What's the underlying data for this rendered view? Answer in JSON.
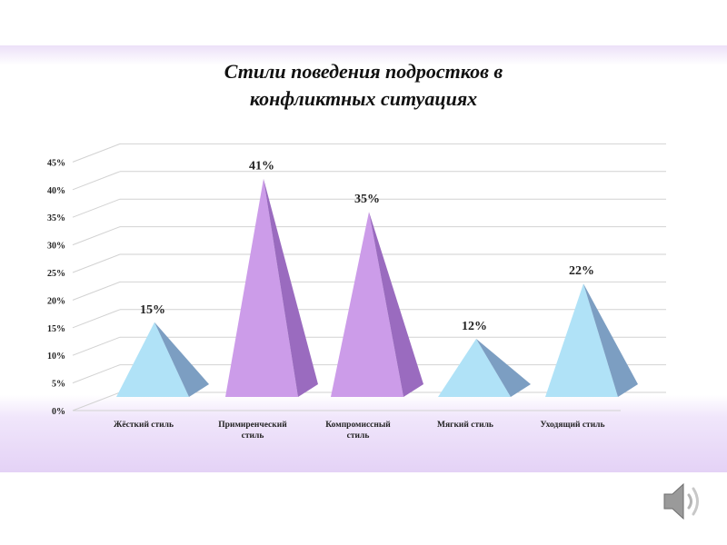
{
  "chart_data": {
    "type": "bar",
    "bar_shape": "pyramid",
    "title_lines": [
      "Стили поведения подростков в",
      "конфликтных ситуациях"
    ],
    "categories": [
      [
        "Жёсткий  стиль"
      ],
      [
        "Примиренческий",
        "стиль"
      ],
      [
        "Компромиссный",
        "стиль"
      ],
      [
        "Мягкий  стиль"
      ],
      [
        "Уходящий стиль"
      ]
    ],
    "values": [
      15,
      41,
      35,
      12,
      22
    ],
    "value_labels": [
      "15%",
      "41%",
      "35%",
      "12%",
      "22%"
    ],
    "colors": {
      "light": {
        "front": "#b0e2f7",
        "side": "#7c9ec2"
      },
      "purple": {
        "front": "#cc9ce9",
        "side": "#9a6bbf"
      }
    },
    "bar_color_keys": [
      "light",
      "purple",
      "purple",
      "light",
      "light"
    ],
    "yticks": [
      "0%",
      "5%",
      "10%",
      "15%",
      "20%",
      "25%",
      "30%",
      "35%",
      "40%",
      "45%"
    ],
    "ylim": [
      0,
      45
    ],
    "grid": true,
    "legend": "none"
  },
  "icons": {
    "sound": "speaker-icon"
  }
}
